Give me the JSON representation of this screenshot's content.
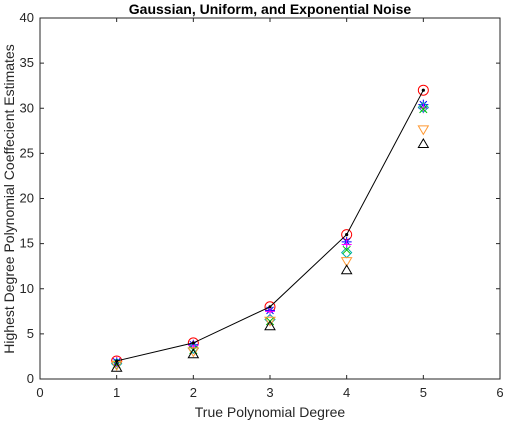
{
  "chart_data": {
    "type": "scatter",
    "title": "Gaussian, Uniform, and Exponential Noise",
    "xlabel": "True Polynomial Degree",
    "ylabel": "Highest Degree Polynomial Coeffecient Estimates",
    "xlim": [
      0,
      6
    ],
    "ylim": [
      0,
      40
    ],
    "xticks": [
      "0",
      "1",
      "2",
      "3",
      "4",
      "5",
      "6"
    ],
    "yticks": [
      "0",
      "5",
      "10",
      "15",
      "20",
      "25",
      "30",
      "35",
      "40"
    ],
    "grid": false,
    "legend": "none",
    "x": [
      1,
      2,
      3,
      4,
      5
    ],
    "series": [
      {
        "style": "line-dot",
        "color": "#000000",
        "values": [
          2,
          4,
          8,
          16,
          32
        ]
      },
      {
        "style": "circle",
        "color": "#ff0000",
        "values": [
          2,
          4,
          8,
          16,
          32
        ]
      },
      {
        "style": "star",
        "color": "#0000ff",
        "values": [
          1.9,
          3.8,
          7.6,
          15.2,
          30.4
        ]
      },
      {
        "style": "plus",
        "color": "#ff00ff",
        "values": [
          1.9,
          3.7,
          7.5,
          14.9,
          30.0
        ]
      },
      {
        "style": "diamond",
        "color": "#00b0b0",
        "values": [
          1.7,
          3.4,
          6.6,
          14.0,
          30.1
        ]
      },
      {
        "style": "x",
        "color": "#00c000",
        "values": [
          1.6,
          3.2,
          6.4,
          14.3,
          29.9
        ]
      },
      {
        "style": "triangle-down",
        "color": "#ff9933",
        "values": [
          1.5,
          3.0,
          6.4,
          13.0,
          27.6
        ]
      },
      {
        "style": "triangle-up",
        "color": "#000000",
        "values": [
          1.3,
          2.8,
          5.9,
          12.1,
          26.1
        ]
      }
    ]
  }
}
